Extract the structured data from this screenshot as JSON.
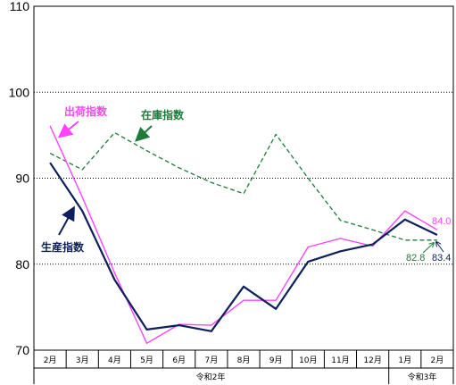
{
  "chart_data": {
    "type": "line",
    "categories": [
      "2月",
      "3月",
      "4月",
      "5月",
      "6月",
      "7月",
      "8月",
      "9月",
      "10月",
      "11月",
      "12月",
      "1月",
      "2月"
    ],
    "era_labels": [
      "令和2年",
      "令和3年"
    ],
    "ylim": [
      70,
      110
    ],
    "yticks": [
      "70",
      "80",
      "90",
      "100",
      "110"
    ],
    "grid": "dotted horizontal at 80, 90, 100",
    "series": [
      {
        "name": "生産指数",
        "color": "#0d1f5c",
        "style": "solid",
        "values": [
          91.8,
          86.2,
          78.2,
          72.4,
          72.9,
          72.2,
          77.4,
          74.8,
          80.3,
          81.5,
          82.3,
          85.2,
          83.4
        ]
      },
      {
        "name": "出荷指数",
        "color": "#ff44ff",
        "style": "solid",
        "values": [
          96.1,
          87.8,
          79.0,
          70.8,
          73.0,
          72.9,
          75.8,
          75.8,
          82.0,
          83.0,
          82.1,
          86.2,
          84.0
        ]
      },
      {
        "name": "在庫指数",
        "color": "#1e7a3a",
        "style": "dashed",
        "values": [
          92.9,
          91.0,
          95.3,
          93.2,
          91.2,
          89.5,
          88.2,
          95.1,
          90.0,
          85.1,
          84.0,
          82.8,
          82.8
        ]
      }
    ],
    "end_values": [
      "84.0",
      "82.8",
      "83.4"
    ]
  }
}
